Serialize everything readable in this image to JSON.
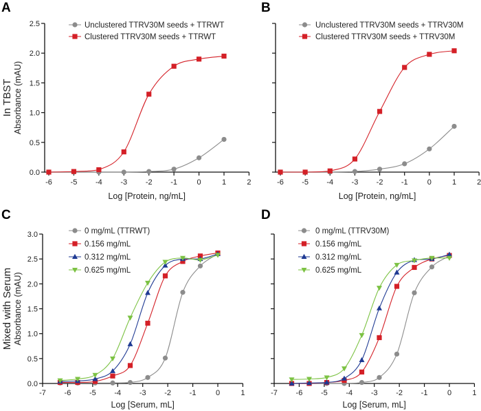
{
  "chart_data": [
    {
      "panel": "A",
      "type": "line",
      "row_label": "In TBST",
      "ylabel": "Absorbance (mAU)",
      "xlabel": "Log [Protein, ng/mL]",
      "xlim": [
        -6.2,
        2
      ],
      "ylim": [
        0,
        2.5
      ],
      "xticks": [
        -6,
        -5,
        -4,
        -3,
        -2,
        -1,
        0,
        1,
        2
      ],
      "yticks": [
        "0.0",
        "0.5",
        "1.0",
        "1.5",
        "2.0",
        "2.5"
      ],
      "legend_position": "top",
      "grid": false,
      "x": [
        -6,
        -5,
        -4,
        -3,
        -2,
        -1,
        0,
        1
      ],
      "series": [
        {
          "name": "Unclustered TTRV30M seeds + TTRWT",
          "marker": "circle",
          "color": "#8c8c8c",
          "values": [
            0,
            0,
            0,
            0,
            0.01,
            0.05,
            0.24,
            0.55
          ]
        },
        {
          "name": "Clustered TTRV30M seeds + TTRWT",
          "marker": "square",
          "color": "#d42027",
          "values": [
            0,
            0.01,
            0.04,
            0.34,
            1.31,
            1.78,
            1.9,
            1.95
          ]
        }
      ]
    },
    {
      "panel": "B",
      "type": "line",
      "xlabel": "Log [Protein, ng/mL]",
      "xlim": [
        -6.2,
        2
      ],
      "ylim": [
        0,
        2.5
      ],
      "xticks": [
        -6,
        -5,
        -4,
        -3,
        -2,
        -1,
        0,
        1,
        2
      ],
      "legend_position": "top",
      "grid": false,
      "x": [
        -6,
        -5,
        -4,
        -3,
        -2,
        -1,
        0,
        1
      ],
      "series": [
        {
          "name": "Unclustered TTRV30M seeds + TTRV30M",
          "marker": "circle",
          "color": "#8c8c8c",
          "values": [
            0,
            0,
            0,
            0.01,
            0.05,
            0.14,
            0.39,
            0.77
          ]
        },
        {
          "name": "Clustered TTRV30M seeds + TTRV30M",
          "marker": "square",
          "color": "#d42027",
          "values": [
            0,
            0,
            0.02,
            0.22,
            1.02,
            1.76,
            1.98,
            2.04
          ]
        }
      ]
    },
    {
      "panel": "C",
      "type": "line",
      "row_label": "Mixed with Serum",
      "ylabel": "Absorbance (mAU)",
      "xlabel": "Log [Serum, mL]",
      "xlim": [
        -7,
        1
      ],
      "ylim": [
        0,
        3.0
      ],
      "xticks": [
        -7,
        -6,
        -5,
        -4,
        -3,
        -2,
        -1,
        0,
        1
      ],
      "yticks": [
        "0.0",
        "0.5",
        "1.0",
        "1.5",
        "2.0",
        "2.5",
        "3.0"
      ],
      "legend_position": "top-left",
      "grid": false,
      "x": [
        -6.3,
        -5.6,
        -4.9,
        -4.2,
        -3.5,
        -2.8,
        -2.1,
        -1.4,
        -0.7,
        0
      ],
      "series": [
        {
          "name": "0 mg/mL (TTRWT)",
          "marker": "circle",
          "color": "#8c8c8c",
          "values": [
            0.01,
            0.01,
            0.01,
            0.01,
            0.02,
            0.12,
            0.51,
            1.83,
            2.36,
            2.6
          ]
        },
        {
          "name": "0.156 mg/mL",
          "marker": "square",
          "color": "#d42027",
          "values": [
            0.02,
            0.02,
            0.04,
            0.15,
            0.36,
            1.21,
            2.16,
            2.45,
            2.56,
            2.62
          ]
        },
        {
          "name": "0.312 mg/mL",
          "marker": "triangle-up",
          "color": "#1f3a93",
          "values": [
            0.04,
            0.05,
            0.09,
            0.25,
            0.79,
            1.82,
            2.37,
            2.5,
            2.5,
            2.6
          ]
        },
        {
          "name": "0.625 mg/mL",
          "marker": "triangle-down",
          "color": "#7cc243",
          "values": [
            0.06,
            0.09,
            0.17,
            0.5,
            1.32,
            2.02,
            2.44,
            2.52,
            2.48,
            2.58
          ]
        }
      ]
    },
    {
      "panel": "D",
      "type": "line",
      "xlabel": "Log [Serum, mL]",
      "xlim": [
        -7,
        1
      ],
      "ylim": [
        0,
        3.0
      ],
      "xticks": [
        -7,
        -6,
        -5,
        -4,
        -3,
        -2,
        -1,
        0,
        1
      ],
      "legend_position": "top-left",
      "grid": false,
      "x": [
        -6.3,
        -5.6,
        -4.9,
        -4.2,
        -3.5,
        -2.8,
        -2.1,
        -1.4,
        -0.7,
        0
      ],
      "series": [
        {
          "name": "0 mg/mL (TTRV30M)",
          "marker": "circle",
          "color": "#8c8c8c",
          "values": [
            0,
            0,
            0,
            0,
            0.02,
            0.12,
            0.59,
            1.82,
            2.34,
            2.56
          ]
        },
        {
          "name": "0.156 mg/mL",
          "marker": "square",
          "color": "#d42027",
          "values": [
            0,
            0,
            0.02,
            0.06,
            0.23,
            0.92,
            1.95,
            2.33,
            2.5,
            2.57
          ]
        },
        {
          "name": "0.312 mg/mL",
          "marker": "triangle-up",
          "color": "#1f3a93",
          "values": [
            0,
            0.01,
            0.02,
            0.1,
            0.47,
            1.51,
            2.23,
            2.48,
            2.5,
            2.59
          ]
        },
        {
          "name": "0.625 mg/mL",
          "marker": "triangle-down",
          "color": "#7cc243",
          "values": [
            0.08,
            0.09,
            0.12,
            0.3,
            0.97,
            1.92,
            2.38,
            2.47,
            2.52,
            2.52
          ]
        }
      ]
    }
  ]
}
